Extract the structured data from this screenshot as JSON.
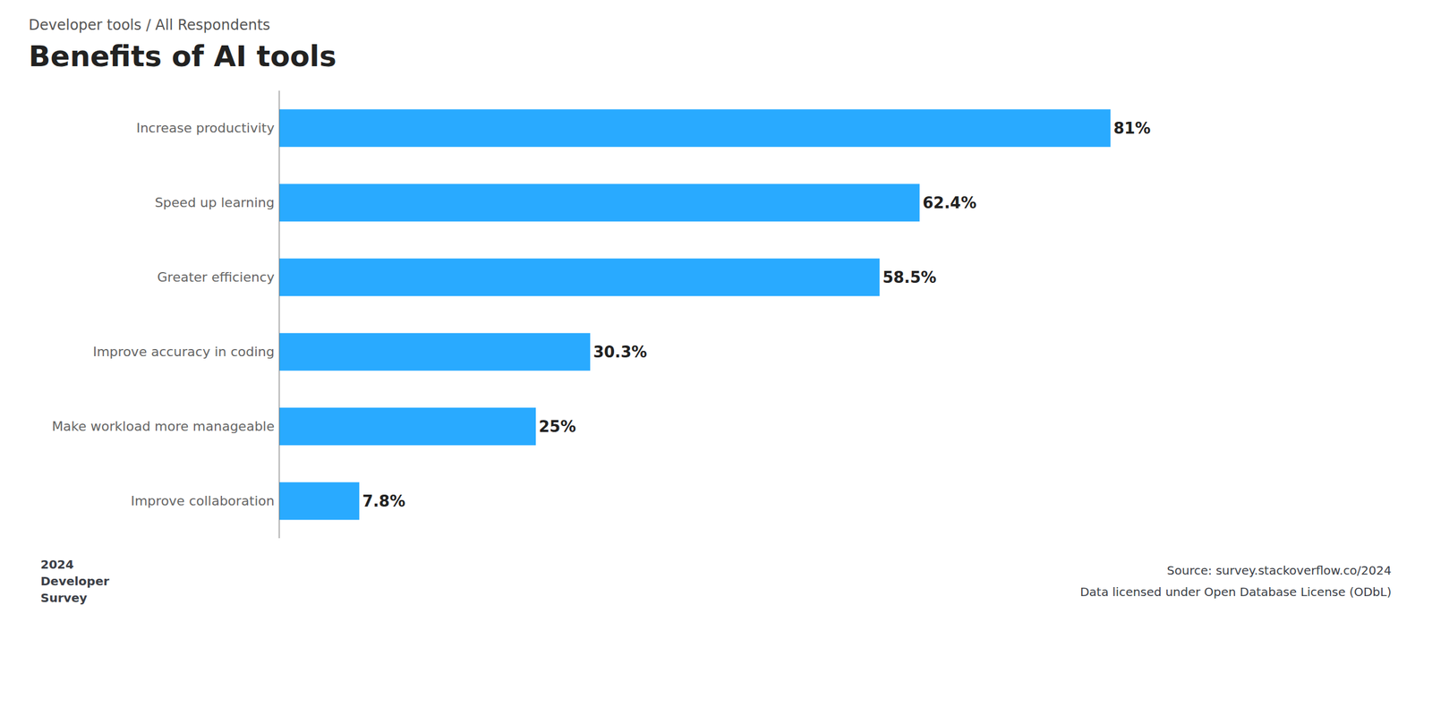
{
  "chart_data": {
    "type": "bar",
    "orientation": "horizontal",
    "title": "Benefits of AI tools",
    "subtitle": "Developer tools / All Respondents",
    "categories": [
      "Increase productivity",
      "Speed up learning",
      "Greater efficiency",
      "Improve accuracy in coding",
      "Make workload more manageable",
      "Improve collaboration"
    ],
    "values": [
      81.0,
      62.4,
      58.5,
      30.3,
      25.0,
      7.8
    ],
    "value_labels": [
      "81%",
      "62.4%",
      "58.5%",
      "30.3%",
      "25%",
      "7.8%"
    ],
    "color": "#29AAFF",
    "xlim": [
      0,
      100
    ],
    "data_labels": true,
    "tick_labels": "y",
    "grid": false,
    "annotations": [
      "2024\nDeveloper\nSurvey",
      "Source: survey.stackoverflow.co/2024",
      "Data licensed under Open Database License (ODbL)"
    ]
  }
}
